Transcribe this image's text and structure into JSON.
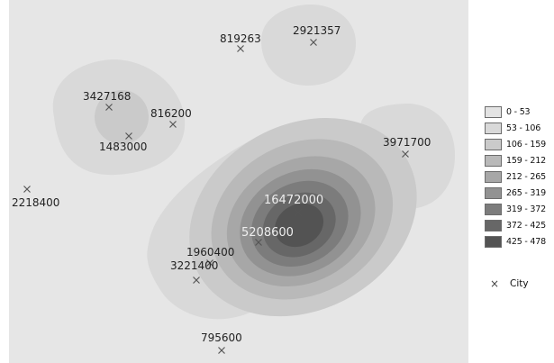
{
  "legend": {
    "classes": [
      {
        "label": "0 - 53",
        "color": "#e3e3e3"
      },
      {
        "label": "53 - 106",
        "color": "#d9d9d9"
      },
      {
        "label": "106 - 159",
        "color": "#cacaca"
      },
      {
        "label": "159 - 212",
        "color": "#b9b9b9"
      },
      {
        "label": "212 - 265",
        "color": "#a7a7a7"
      },
      {
        "label": "265 - 319",
        "color": "#929292"
      },
      {
        "label": "319 - 372",
        "color": "#7c7c7c"
      },
      {
        "label": "372 - 425",
        "color": "#676767"
      },
      {
        "label": "425 - 478",
        "color": "#535353"
      }
    ],
    "city_symbol": "×",
    "city_label": "City"
  },
  "map": {
    "background": "#e6e6e6",
    "cities": [
      {
        "population": "2921357"
      },
      {
        "population": "819263"
      },
      {
        "population": "3427168"
      },
      {
        "population": "816200"
      },
      {
        "population": "1483000"
      },
      {
        "population": "3971700"
      },
      {
        "population": "2218400"
      },
      {
        "population": "16472000"
      },
      {
        "population": "5208600"
      },
      {
        "population": "1960400"
      },
      {
        "population": "3221400"
      },
      {
        "population": "795600"
      }
    ]
  }
}
